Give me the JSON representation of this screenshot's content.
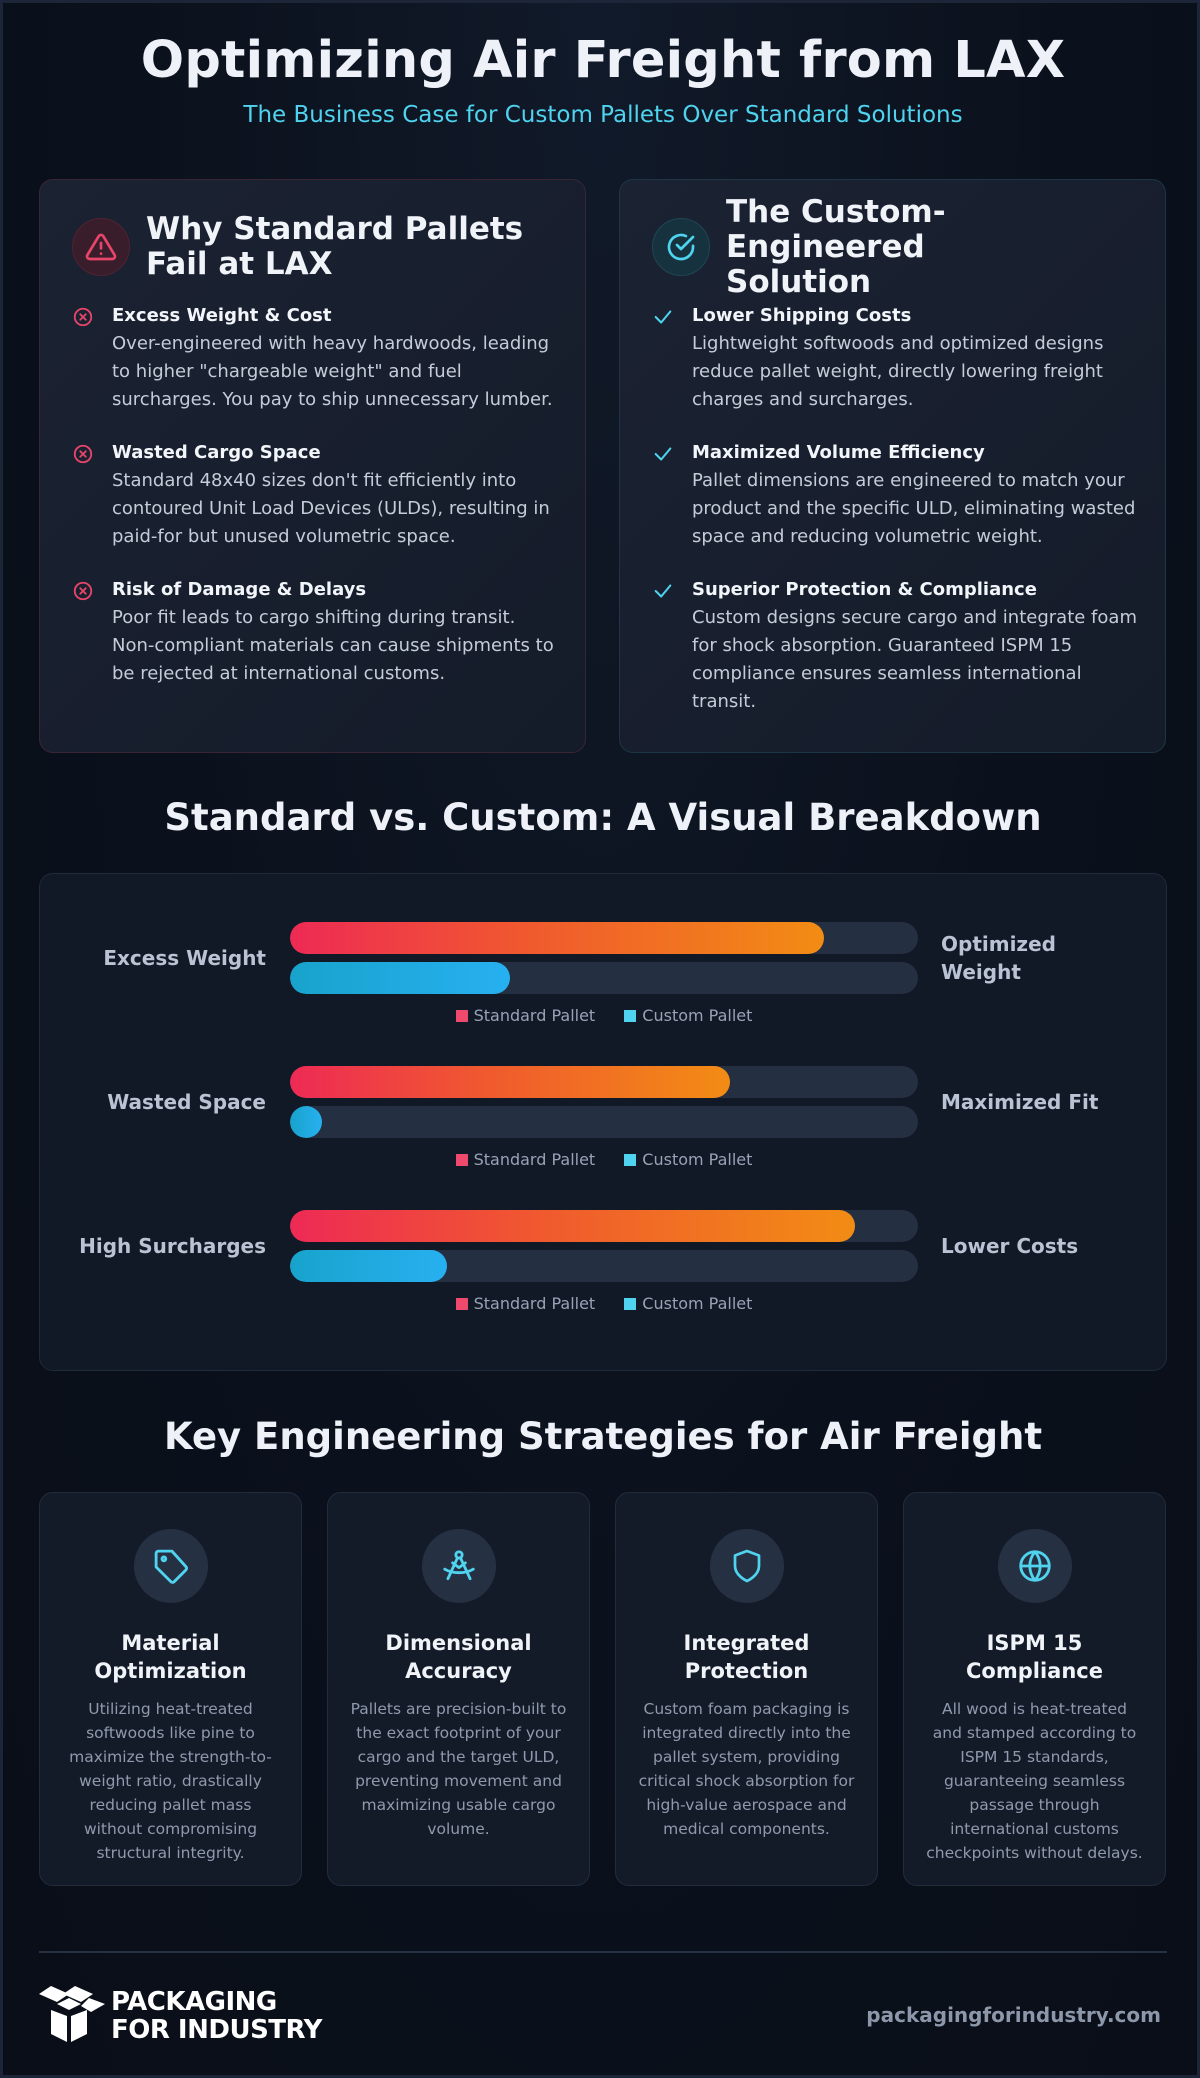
{
  "header": {
    "title": "Optimizing Air Freight from LAX",
    "subtitle": "The Business Case for Custom Pallets Over Standard Solutions"
  },
  "colors": {
    "accent_cyan": "#4fd3ee",
    "alert_red": "#e8456b",
    "standard_gradient": [
      "#ee2a55",
      "#f28c14"
    ],
    "custom_gradient": [
      "#18a3cc",
      "#27b0f0"
    ],
    "background": "#0b111c"
  },
  "problems": {
    "icon": "warning-triangle-icon",
    "title_line1": "Why Standard Pallets",
    "title_line2": "Fail at LAX",
    "items": [
      {
        "icon": "x-circle-icon",
        "title": "Excess Weight & Cost",
        "desc": "Over-engineered with heavy hardwoods, leading to higher \"chargeable weight\" and fuel surcharges. You pay to ship unnecessary lumber."
      },
      {
        "icon": "x-circle-icon",
        "title": "Wasted Cargo Space",
        "desc": "Standard 48x40 sizes don't fit efficiently into contoured Unit Load Devices (ULDs), resulting in paid-for but unused volumetric space."
      },
      {
        "icon": "x-circle-icon",
        "title": "Risk of Damage & Delays",
        "desc": "Poor fit leads to cargo shifting during transit. Non-compliant materials can cause shipments to be rejected at international customs."
      }
    ]
  },
  "solution": {
    "icon": "check-circle-icon",
    "title_line1": "The Custom-Engineered",
    "title_line2": "Solution",
    "items": [
      {
        "icon": "checkmark-icon",
        "title": "Lower Shipping Costs",
        "desc": "Lightweight softwoods and optimized designs reduce pallet weight, directly lowering freight charges and surcharges."
      },
      {
        "icon": "checkmark-icon",
        "title": "Maximized Volume Efficiency",
        "desc": "Pallet dimensions are engineered to match your product and the specific ULD, eliminating wasted space and reducing volumetric weight."
      },
      {
        "icon": "checkmark-icon",
        "title": "Superior Protection & Compliance",
        "desc": "Custom designs secure cargo and integrate foam for shock absorption. Guaranteed ISPM 15 compliance ensures seamless international transit."
      }
    ]
  },
  "comparison": {
    "title": "Standard vs. Custom: A Visual Breakdown",
    "legend": {
      "standard": "Standard Pallet",
      "custom": "Custom Pallet"
    },
    "rows": [
      {
        "left": "Excess Weight",
        "right": "Optimized Weight",
        "standard_pct": 85,
        "custom_pct": 35
      },
      {
        "left": "Wasted Space",
        "right": "Maximized Fit",
        "standard_pct": 70,
        "custom_pct": 5
      },
      {
        "left": "High Surcharges",
        "right": "Lower Costs",
        "standard_pct": 90,
        "custom_pct": 25
      }
    ]
  },
  "strategies": {
    "title": "Key Engineering Strategies for Air Freight",
    "cards": [
      {
        "icon": "tag-icon",
        "title_line1": "Material",
        "title_line2": "Optimization",
        "desc": "Utilizing heat-treated softwoods like pine to maximize the strength-to-weight ratio, drastically reducing pallet mass without compromising structural integrity."
      },
      {
        "icon": "drafting-compass-icon",
        "title_line1": "Dimensional",
        "title_line2": "Accuracy",
        "desc": "Pallets are precision-built to the exact footprint of your cargo and the target ULD, preventing movement and maximizing usable cargo volume."
      },
      {
        "icon": "shield-icon",
        "title_line1": "Integrated",
        "title_line2": "Protection",
        "desc": "Custom foam packaging is integrated directly into the pallet system, providing critical shock absorption for high-value aerospace and medical components."
      },
      {
        "icon": "globe-icon",
        "title_line1": "ISPM 15",
        "title_line2": "Compliance",
        "desc": "All wood is heat-treated and stamped according to ISPM 15 standards, guaranteeing seamless passage through international customs checkpoints without delays."
      }
    ]
  },
  "footer": {
    "logo_icon": "box-logo-icon",
    "logo_line1": "PACKAGING",
    "logo_line2": "FOR INDUSTRY",
    "url": "packagingforindustry.com"
  }
}
